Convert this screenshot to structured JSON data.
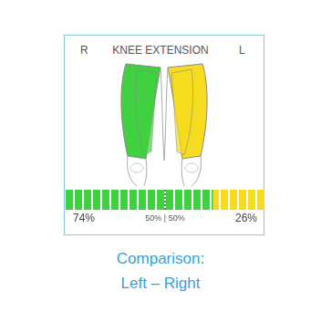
{
  "chart_data": {
    "type": "bar",
    "title": "KNEE EXTENSION",
    "orientation": "horizontal",
    "stacked": true,
    "xlim": [
      0,
      100
    ],
    "tick_labels": false,
    "grid": false,
    "data_labels": true,
    "series": [
      {
        "name": "R",
        "color": "#3fd13f",
        "values": [
          74
        ],
        "value_labels": [
          "74%"
        ]
      },
      {
        "name": "L",
        "color": "#f5dc1e",
        "values": [
          26
        ],
        "value_labels": [
          "26%"
        ]
      }
    ],
    "annotations": [
      {
        "x": 50,
        "label": "50% | 50%"
      }
    ],
    "caption": [
      "Comparison:",
      "Left – Right"
    ]
  }
}
